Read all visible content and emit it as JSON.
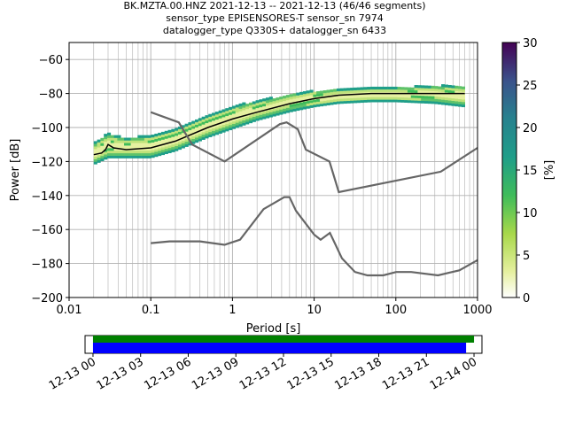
{
  "header": {
    "line1": "BK.MZTA.00.HNZ   2021-12-13 -- 2021-12-13  (46/46 segments)",
    "line2": "sensor_type EPISENSORES-T sensor_sn 7974",
    "line3": "datalogger_type Q330S+ datalogger_sn 6433"
  },
  "chart_data": [
    {
      "type": "heatmap",
      "title": "",
      "xlabel": "Period [s]",
      "ylabel": "Power [dB]",
      "x_scale": "log",
      "xlim": [
        0.01,
        1000
      ],
      "ylim": [
        -200,
        -50
      ],
      "x_ticks": [
        "0.01",
        "0.1",
        "1",
        "10",
        "100",
        "1000"
      ],
      "y_ticks": [
        "−200",
        "−180",
        "−160",
        "−140",
        "−120",
        "−100",
        "−80",
        "−60"
      ],
      "grid": true,
      "colorbar": {
        "label": "[%]",
        "range": [
          0,
          30
        ],
        "ticks": [
          "0",
          "5",
          "10",
          "15",
          "20",
          "25",
          "30"
        ]
      },
      "series": [
        {
          "name": "",
          "role": "mean",
          "color": "#000000",
          "points": [
            [
              0.02,
              -116
            ],
            [
              0.025,
              -115
            ],
            [
              0.028,
              -113
            ],
            [
              0.03,
              -110
            ],
            [
              0.035,
              -112
            ],
            [
              0.05,
              -113
            ],
            [
              0.1,
              -112
            ],
            [
              0.2,
              -108
            ],
            [
              0.5,
              -100
            ],
            [
              1,
              -95
            ],
            [
              2,
              -91
            ],
            [
              5,
              -86
            ],
            [
              10,
              -83
            ],
            [
              20,
              -81
            ],
            [
              50,
              -80
            ],
            [
              100,
              -80
            ],
            [
              300,
              -80
            ],
            [
              700,
              -80
            ]
          ]
        },
        {
          "name": "",
          "role": "new-high-noise-model",
          "color": "#666666",
          "points": [
            [
              0.1,
              -91
            ],
            [
              0.22,
              -97
            ],
            [
              0.32,
              -110
            ],
            [
              0.8,
              -120
            ],
            [
              3.8,
              -98
            ],
            [
              4.6,
              -97
            ],
            [
              6.3,
              -101
            ],
            [
              7.9,
              -113
            ],
            [
              15.4,
              -120
            ],
            [
              20,
              -138
            ],
            [
              354.8,
              -126
            ],
            [
              1000,
              -112
            ]
          ]
        },
        {
          "name": "",
          "role": "new-low-noise-model",
          "color": "#666666",
          "points": [
            [
              0.1,
              -168
            ],
            [
              0.17,
              -167
            ],
            [
              0.4,
              -167
            ],
            [
              0.8,
              -169
            ],
            [
              1.24,
              -166
            ],
            [
              2.4,
              -148
            ],
            [
              4.3,
              -141
            ],
            [
              5,
              -141
            ],
            [
              6,
              -149
            ],
            [
              10,
              -163
            ],
            [
              12,
              -166
            ],
            [
              15.6,
              -162
            ],
            [
              21.9,
              -177
            ],
            [
              31.6,
              -185
            ],
            [
              45,
              -187
            ],
            [
              70,
              -187
            ],
            [
              101,
              -185
            ],
            [
              154,
              -185
            ],
            [
              328,
              -187
            ],
            [
              600,
              -184
            ],
            [
              1000,
              -178
            ]
          ]
        }
      ],
      "ppsd_band": {
        "description_note": "",
        "upper": [
          [
            0.02,
            -110
          ],
          [
            0.03,
            -104
          ],
          [
            0.05,
            -107
          ],
          [
            0.1,
            -105
          ],
          [
            0.2,
            -101
          ],
          [
            0.5,
            -93
          ],
          [
            1,
            -88
          ],
          [
            2,
            -85
          ],
          [
            5,
            -81
          ],
          [
            10,
            -79
          ],
          [
            20,
            -78
          ],
          [
            50,
            -77
          ],
          [
            100,
            -77
          ],
          [
            300,
            -76
          ],
          [
            700,
            -76
          ]
        ],
        "lower": [
          [
            0.02,
            -122
          ],
          [
            0.03,
            -118
          ],
          [
            0.05,
            -118
          ],
          [
            0.1,
            -118
          ],
          [
            0.2,
            -114
          ],
          [
            0.5,
            -106
          ],
          [
            1,
            -101
          ],
          [
            2,
            -96
          ],
          [
            5,
            -91
          ],
          [
            10,
            -88
          ],
          [
            20,
            -86
          ],
          [
            50,
            -85
          ],
          [
            100,
            -85
          ],
          [
            300,
            -86
          ],
          [
            700,
            -88
          ]
        ]
      }
    },
    {
      "type": "bar",
      "title": "",
      "role": "data-coverage",
      "x_ticks": [
        "12-13 00",
        "12-13 03",
        "12-13 06",
        "12-13 09",
        "12-13 12",
        "12-13 15",
        "12-13 18",
        "12-13 21",
        "12-14 00"
      ],
      "x_range_hours": [
        -0.5,
        24.5
      ],
      "bars": [
        {
          "start_hour": 0,
          "end_hour": 24.0,
          "color": "#008000"
        },
        {
          "start_hour": 0,
          "end_hour": 23.5,
          "color": "#0000ff"
        }
      ]
    }
  ]
}
